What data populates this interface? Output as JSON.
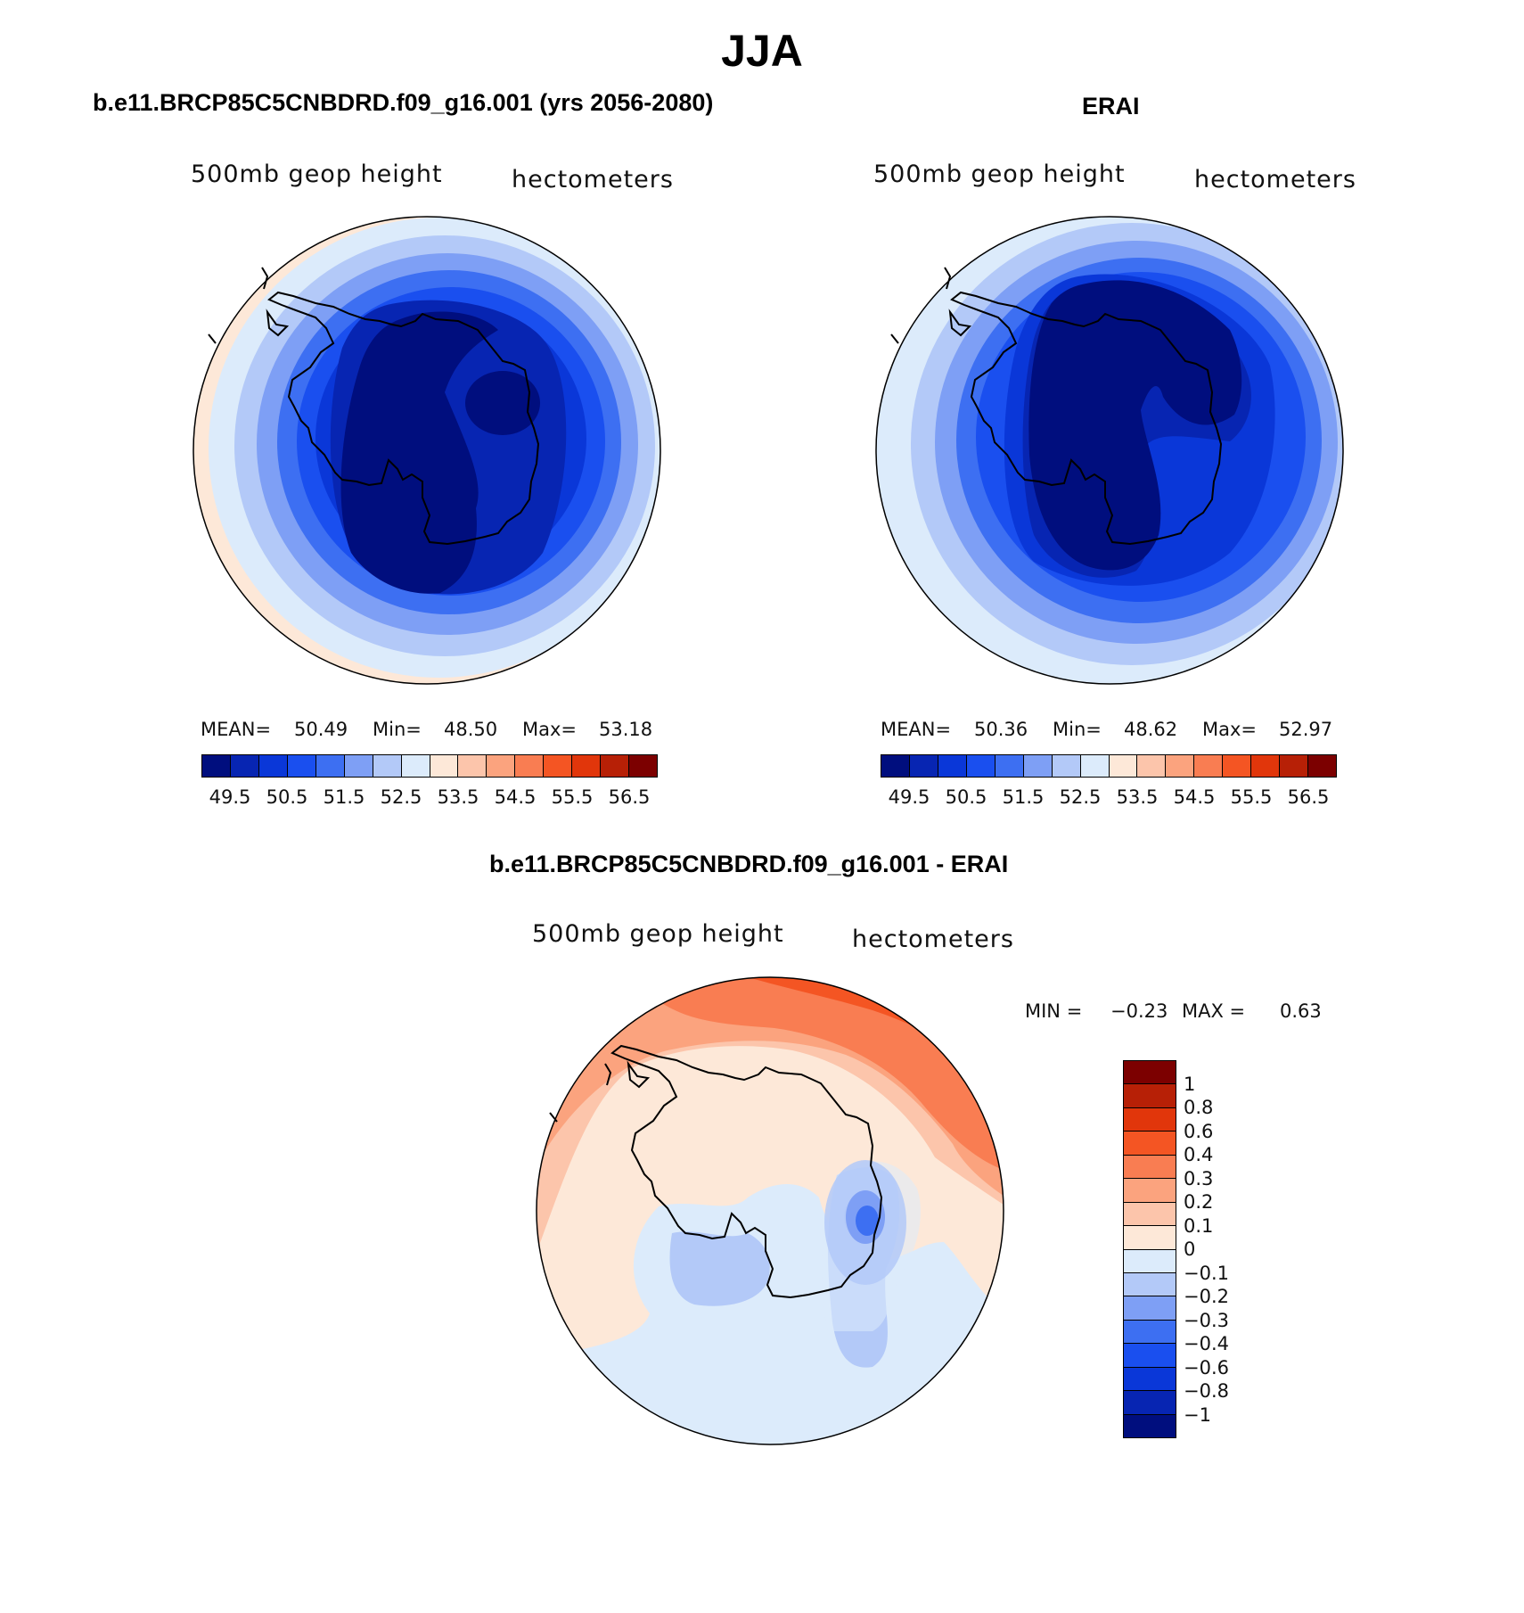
{
  "figure": {
    "title": "JJA"
  },
  "panels": {
    "model": {
      "title": "b.e11.BRCP85C5CNBDRD.f09_g16.001 (yrs 2056-2080)",
      "left_label": "500mb  geop  height",
      "right_label": "hectometers",
      "mean_label": "MEAN=",
      "mean_value": "50.49",
      "min_label": "Min=",
      "min_value": "48.50",
      "max_label": "Max=",
      "max_value": "53.18"
    },
    "obs": {
      "title": "ERAI",
      "left_label": "500mb  geop  height",
      "right_label": "hectometers",
      "mean_label": "MEAN=",
      "mean_value": "50.36",
      "min_label": "Min=",
      "min_value": "48.62",
      "max_label": "Max=",
      "max_value": "52.97"
    },
    "diff": {
      "title": "b.e11.BRCP85C5CNBDRD.f09_g16.001 - ERAI",
      "left_label": "500mb  geop  height",
      "right_label": "hectometers",
      "min_label": "MIN =",
      "min_value": "−0.23",
      "max_label": "MAX =",
      "max_value": "0.63"
    }
  },
  "colorbars": {
    "abs": {
      "colors": [
        "#000e7e",
        "#0725b2",
        "#0a37d8",
        "#1a4fef",
        "#3d6ff2",
        "#7e9ff5",
        "#b3c9f8",
        "#dcebfb",
        "#fde8d8",
        "#fcc5ab",
        "#fba37e",
        "#f97d52",
        "#f45523",
        "#e1360b",
        "#b72006",
        "#7c0000"
      ],
      "tick_labels": [
        "49.5",
        "50.5",
        "51.5",
        "52.5",
        "53.5",
        "54.5",
        "55.5",
        "56.5"
      ]
    },
    "diff": {
      "colors": [
        "#000e7e",
        "#0725b2",
        "#0a37d8",
        "#1a4fef",
        "#3d6ff2",
        "#7e9ff5",
        "#b3c9f8",
        "#dcebfb",
        "#fde8d8",
        "#fcc5ab",
        "#fba37e",
        "#f97d52",
        "#f45523",
        "#e1360b",
        "#b72006",
        "#7c0000"
      ],
      "tick_labels": [
        "−1",
        "−0.8",
        "−0.6",
        "−0.4",
        "−0.3",
        "−0.2",
        "−0.1",
        "0",
        "0.1",
        "0.2",
        "0.3",
        "0.4",
        "0.6",
        "0.8",
        "1"
      ]
    }
  },
  "map_data": {
    "projection": "south polar stereographic",
    "region": "Antarctica",
    "variable": "500mb geopotential height",
    "units": "hectometers",
    "maps": [
      {
        "panel": "model",
        "field": "absolute",
        "mean": 50.49,
        "min": 48.5,
        "max": 53.18,
        "interval": 0.5,
        "max_color": "#fde8d8"
      },
      {
        "panel": "obs",
        "field": "absolute",
        "mean": 50.36,
        "min": 48.62,
        "max": 52.97,
        "interval": 0.5,
        "max_color": "#dcebfb"
      },
      {
        "panel": "diff",
        "field": "difference",
        "min": -0.23,
        "max": 0.63
      }
    ]
  }
}
